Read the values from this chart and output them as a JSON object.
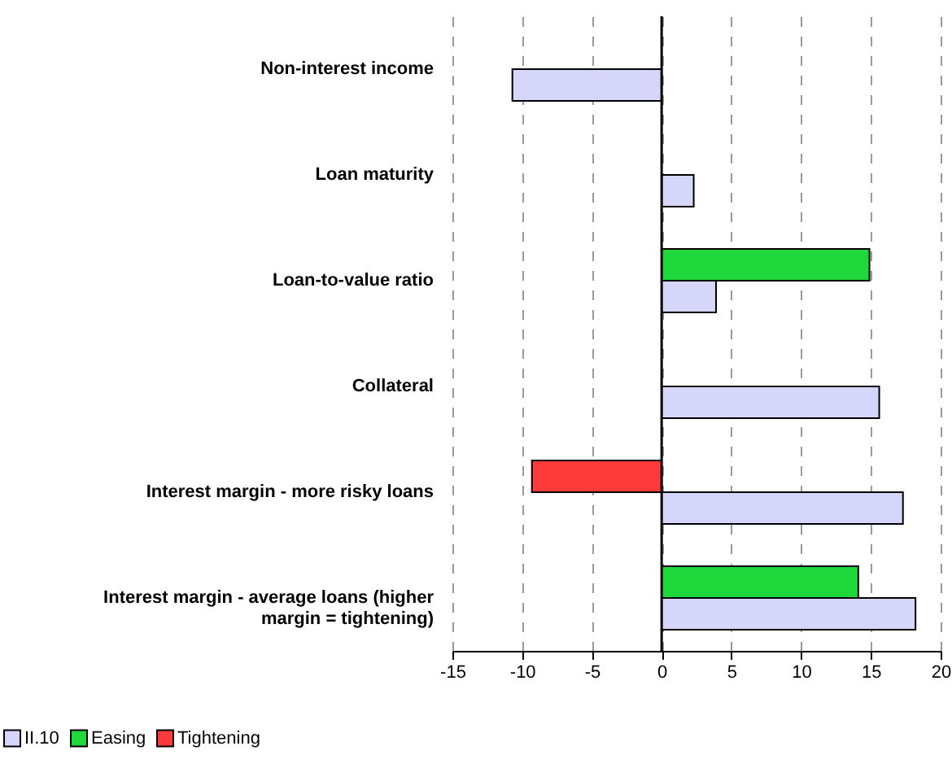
{
  "chart_data": {
    "type": "bar",
    "orientation": "horizontal",
    "categories": [
      "Non-interest income",
      "Loan maturity",
      "Loan-to-value ratio",
      "Collateral",
      "Interest margin - more risky loans",
      "Interest margin - average loans (higher margin = tightening)"
    ],
    "series": [
      {
        "name": "II.10",
        "color": "#d6d6fa",
        "values": [
          -10.7,
          2.3,
          3.9,
          15.6,
          17.3,
          18.2
        ]
      },
      {
        "name": "Easing",
        "color": "#1ed83c",
        "values": [
          null,
          null,
          14.9,
          null,
          null,
          14.1
        ]
      },
      {
        "name": "Tightening",
        "color": "#ff3a3a",
        "values": [
          null,
          null,
          null,
          null,
          -9.3,
          null
        ]
      }
    ],
    "xlim": [
      -15,
      20
    ],
    "xticks": [
      -15,
      -10,
      -5,
      0,
      5,
      10,
      15,
      20
    ],
    "grid": "x",
    "legend": "bottom left"
  }
}
